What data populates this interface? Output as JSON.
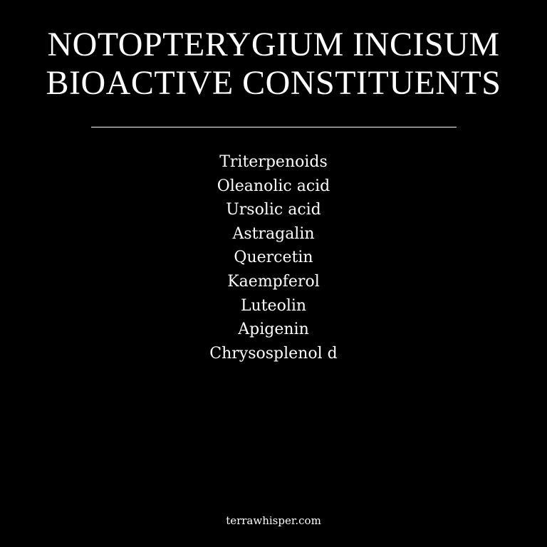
{
  "title": {
    "line1": "NOTOPTERYGIUM INCISUM",
    "line2": "BIOACTIVE CONSTITUENTS"
  },
  "constituents": [
    "Triterpenoids",
    "Oleanolic acid",
    "Ursolic acid",
    "Astragalin",
    "Quercetin",
    "Kaempferol",
    "Luteolin",
    "Apigenin",
    "Chrysosplenol d"
  ],
  "footer": {
    "site": "terrawhisper.com"
  },
  "colors": {
    "background": "#000000",
    "text": "#ffffff"
  }
}
